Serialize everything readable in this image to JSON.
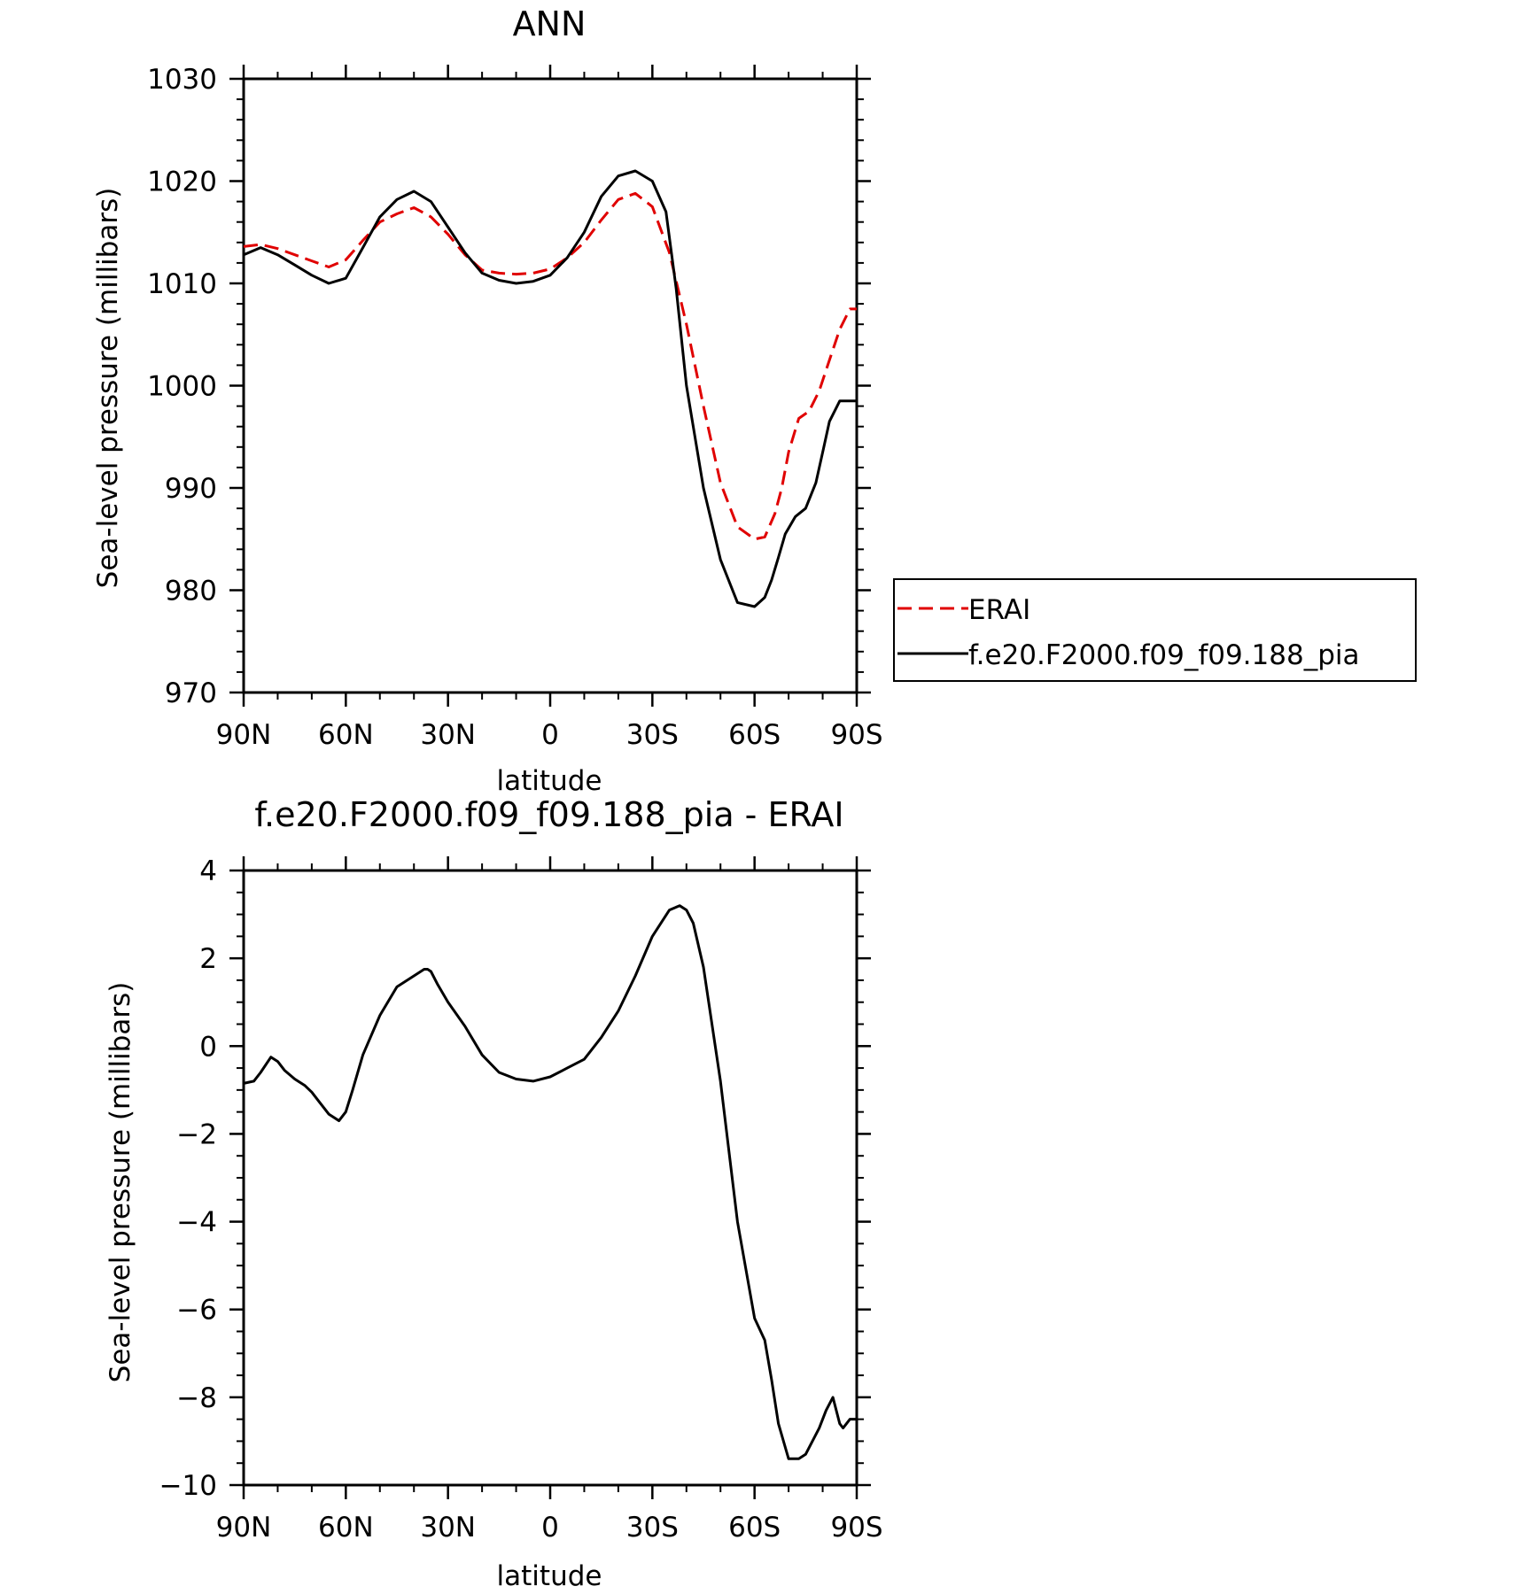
{
  "chart_data": [
    {
      "type": "line",
      "title": "ANN",
      "xlabel": "latitude",
      "ylabel": "Sea-level pressure (millibars)",
      "xlim": [
        90,
        -90
      ],
      "x_ticks": [
        90,
        60,
        30,
        0,
        -30,
        -60,
        -90
      ],
      "x_tick_labels": [
        "90N",
        "60N",
        "30N",
        "0",
        "30S",
        "60S",
        "90S"
      ],
      "ylim": [
        970,
        1030
      ],
      "y_ticks": [
        970,
        980,
        990,
        1000,
        1010,
        1020,
        1030
      ],
      "y_tick_labels": [
        "970",
        "980",
        "990",
        "1000",
        "1010",
        "1020",
        "1030"
      ],
      "grid": false,
      "legend": "right",
      "series": [
        {
          "name": "ERAI",
          "color": "#e00000",
          "dash": "dashed",
          "x": [
            90,
            85,
            80,
            75,
            70,
            65,
            60,
            55,
            50,
            45,
            40,
            35,
            30,
            25,
            20,
            15,
            10,
            5,
            0,
            -5,
            -10,
            -15,
            -20,
            -25,
            -30,
            -35,
            -40,
            -45,
            -50,
            -55,
            -60,
            -63,
            -66,
            -68,
            -70,
            -73,
            -76,
            -79,
            -82,
            -85,
            -88,
            -90
          ],
          "values": [
            1013.6,
            1013.8,
            1013.4,
            1012.8,
            1012.2,
            1011.6,
            1012.3,
            1014.2,
            1016.0,
            1016.8,
            1017.4,
            1016.5,
            1014.8,
            1012.8,
            1011.3,
            1011.0,
            1010.9,
            1011.0,
            1011.4,
            1012.5,
            1014.0,
            1016.2,
            1018.2,
            1018.8,
            1017.5,
            1013.0,
            1006.0,
            998.0,
            990.5,
            986.2,
            985.0,
            985.2,
            987.5,
            990.0,
            993.5,
            996.8,
            997.5,
            999.5,
            1002.5,
            1005.5,
            1007.5,
            1007.5
          ]
        },
        {
          "name": "f.e20.F2000.f09_f09.188_pia",
          "color": "#000000",
          "dash": "solid",
          "x": [
            90,
            85,
            80,
            75,
            70,
            65,
            60,
            55,
            50,
            45,
            40,
            35,
            30,
            25,
            20,
            15,
            10,
            5,
            0,
            -5,
            -10,
            -15,
            -20,
            -25,
            -30,
            -34,
            -37,
            -40,
            -45,
            -50,
            -55,
            -60,
            -63,
            -65,
            -67,
            -69,
            -72,
            -75,
            -78,
            -80,
            -82,
            -85,
            -88,
            -90
          ],
          "values": [
            1012.8,
            1013.5,
            1012.8,
            1011.8,
            1010.8,
            1010.0,
            1010.5,
            1013.5,
            1016.5,
            1018.2,
            1019.0,
            1018.0,
            1015.5,
            1013.0,
            1011.0,
            1010.3,
            1010.0,
            1010.2,
            1010.8,
            1012.5,
            1015.0,
            1018.5,
            1020.5,
            1021.0,
            1020.0,
            1017.0,
            1009.5,
            1000.0,
            990.0,
            983.0,
            978.8,
            978.4,
            979.3,
            981.0,
            983.2,
            985.5,
            987.2,
            988.0,
            990.5,
            993.5,
            996.5,
            998.5,
            998.5,
            998.5
          ]
        }
      ]
    },
    {
      "type": "line",
      "title": "f.e20.F2000.f09_f09.188_pia - ERAI",
      "xlabel": "latitude",
      "ylabel": "Sea-level pressure (millibars)",
      "xlim": [
        90,
        -90
      ],
      "x_ticks": [
        90,
        60,
        30,
        0,
        -30,
        -60,
        -90
      ],
      "x_tick_labels": [
        "90N",
        "60N",
        "30N",
        "0",
        "30S",
        "60S",
        "90S"
      ],
      "ylim": [
        -10,
        4
      ],
      "y_ticks": [
        -10,
        -8,
        -6,
        -4,
        -2,
        0,
        2,
        4
      ],
      "y_tick_labels": [
        "−10",
        "−8",
        "−6",
        "−4",
        "−2",
        "0",
        "2",
        "4"
      ],
      "grid": false,
      "series": [
        {
          "color": "#000000",
          "dash": "solid",
          "x": [
            90,
            87,
            85,
            82,
            80,
            78,
            75,
            72,
            70,
            68,
            65,
            62,
            60,
            58,
            55,
            50,
            45,
            40,
            37,
            36,
            35,
            33,
            30,
            25,
            20,
            15,
            10,
            5,
            0,
            -5,
            -10,
            -15,
            -20,
            -25,
            -30,
            -35,
            -38,
            -40,
            -42,
            -45,
            -50,
            -55,
            -60,
            -63,
            -65,
            -67,
            -70,
            -73,
            -75,
            -77,
            -79,
            -81,
            -83,
            -85,
            -86,
            -87,
            -88,
            -89,
            -90
          ],
          "values": [
            -0.85,
            -0.8,
            -0.6,
            -0.25,
            -0.35,
            -0.55,
            -0.75,
            -0.9,
            -1.05,
            -1.25,
            -1.55,
            -1.7,
            -1.5,
            -1.0,
            -0.2,
            0.7,
            1.35,
            1.6,
            1.75,
            1.75,
            1.7,
            1.4,
            1.0,
            0.45,
            -0.2,
            -0.6,
            -0.75,
            -0.8,
            -0.7,
            -0.5,
            -0.3,
            0.2,
            0.8,
            1.6,
            2.5,
            3.1,
            3.2,
            3.1,
            2.8,
            1.8,
            -0.8,
            -4.0,
            -6.2,
            -6.7,
            -7.6,
            -8.6,
            -9.4,
            -9.4,
            -9.3,
            -9.0,
            -8.7,
            -8.3,
            -8.0,
            -8.6,
            -8.7,
            -8.6,
            -8.5,
            -8.5,
            -8.5
          ]
        }
      ]
    }
  ]
}
